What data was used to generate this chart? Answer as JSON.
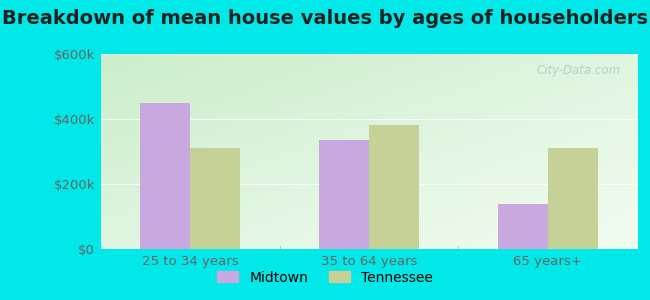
{
  "title": "Breakdown of mean house values by ages of householders",
  "categories": [
    "25 to 34 years",
    "35 to 64 years",
    "65 years+"
  ],
  "midtown_values": [
    450000,
    335000,
    140000
  ],
  "tennessee_values": [
    310000,
    380000,
    310000
  ],
  "midtown_color": "#c9a8e0",
  "tennessee_color": "#c5d196",
  "bar_width": 0.28,
  "ylim": [
    0,
    600000
  ],
  "yticks": [
    0,
    200000,
    400000,
    600000
  ],
  "ytick_labels": [
    "$0",
    "$200k",
    "$400k",
    "$600k"
  ],
  "background_outer": "#00e8e8",
  "legend_midtown": "Midtown",
  "legend_tennessee": "Tennessee",
  "title_fontsize": 14,
  "tick_fontsize": 9.5,
  "legend_fontsize": 10,
  "watermark": "City-Data.com"
}
